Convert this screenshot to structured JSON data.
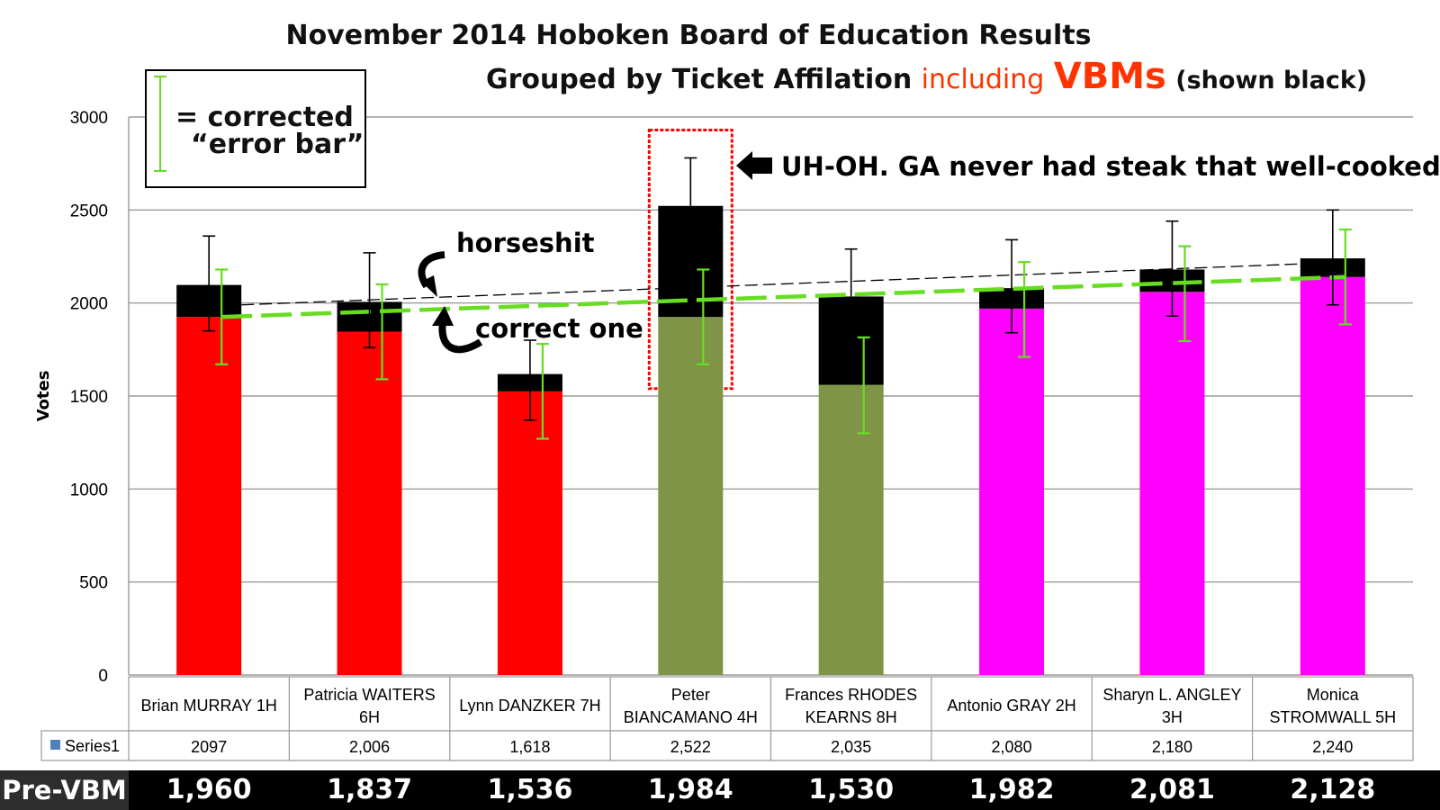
{
  "chart_data": {
    "type": "bar",
    "title": "November 2014 Hoboken Board of Education Results",
    "subtitle": {
      "part1": "Grouped by Ticket Affilation",
      "part2": "including",
      "part3": "VBMs",
      "part4": "(shown black)"
    },
    "ylabel": "Votes",
    "ylim": [
      0,
      3000
    ],
    "yticks": [
      0,
      500,
      1000,
      1500,
      2000,
      2500,
      3000
    ],
    "grid": true,
    "categories": [
      "Brian MURRAY 1H",
      "Patricia WAITERS 6H",
      "Lynn DANZKER 7H",
      "Peter BIANCAMANO 4H",
      "Frances RHODES KEARNS 8H",
      "Antonio GRAY 2H",
      "Sharyn L. ANGLEY 3H",
      "Monica STROMWALL 5H"
    ],
    "category_lines": [
      [
        "Brian MURRAY 1H"
      ],
      [
        "Patricia WAITERS",
        "6H"
      ],
      [
        "Lynn DANZKER 7H"
      ],
      [
        "Peter",
        "BIANCAMANO 4H"
      ],
      [
        "Frances RHODES",
        "KEARNS 8H"
      ],
      [
        "Antonio GRAY 2H"
      ],
      [
        "Sharyn L. ANGLEY",
        "3H"
      ],
      [
        "Monica",
        "STROMWALL 5H"
      ]
    ],
    "series_label": "Series1",
    "totals": [
      2097,
      2006,
      1618,
      2522,
      2035,
      2080,
      2180,
      2240
    ],
    "totals_text": [
      "2097",
      "2,006",
      "1,618",
      "2,522",
      "2,035",
      "2,080",
      "2,180",
      "2,240"
    ],
    "pre_vbm_label": "Pre-VBM",
    "pre_vbm": [
      1960,
      1837,
      1536,
      1984,
      1530,
      1982,
      2081,
      2128
    ],
    "pre_vbm_text": [
      "1,960",
      "1,837",
      "1,536",
      "1,984",
      "1,530",
      "1,982",
      "2,081",
      "2,128"
    ],
    "bar_segment_tops": [
      1925,
      1845,
      1525,
      1925,
      1560,
      1970,
      2060,
      2140
    ],
    "bar_colors": [
      "#ff0000",
      "#ff0000",
      "#ff0000",
      "#7f9446",
      "#7f9446",
      "#ff00ff",
      "#ff00ff",
      "#ff00ff"
    ],
    "vbm_color": "#000000",
    "error_bars_black": [
      {
        "center": 2097,
        "low": 1850,
        "high": 2360
      },
      {
        "center": 2006,
        "low": 1760,
        "high": 2270
      },
      {
        "center": 1618,
        "low": 1370,
        "high": 1800
      },
      {
        "center": 2522,
        "low": null,
        "high": 2780
      },
      {
        "center": 2035,
        "low": null,
        "high": 2290
      },
      {
        "center": 2080,
        "low": 1840,
        "high": 2340
      },
      {
        "center": 2180,
        "low": 1930,
        "high": 2440
      },
      {
        "center": 2240,
        "low": 1990,
        "high": 2500
      }
    ],
    "error_bars_corrected": [
      {
        "center": 1925,
        "low": 1670,
        "high": 2180
      },
      {
        "center": 1845,
        "low": 1590,
        "high": 2100
      },
      {
        "center": 1525,
        "low": 1270,
        "high": 1780
      },
      {
        "center": 1925,
        "low": 1670,
        "high": 2180
      },
      {
        "center": 1560,
        "low": 1300,
        "high": 1815
      },
      {
        "center": 1970,
        "low": 1710,
        "high": 2220
      },
      {
        "center": 2060,
        "low": 1795,
        "high": 2305
      },
      {
        "center": 2140,
        "low": 1885,
        "high": 2395
      }
    ],
    "trend_black": {
      "from": 1990,
      "to": 2210
    },
    "trend_green": {
      "from": 1925,
      "to": 2140
    },
    "highlight_category": 3,
    "legend": {
      "line1": "= corrected",
      "line2": "“error bar”",
      "color": "#66dd22"
    },
    "annotations": {
      "uh_oh": "UH-OH. GA never had steak that well-cooked",
      "horseshit": "horseshit",
      "correct_one": "correct one"
    }
  }
}
